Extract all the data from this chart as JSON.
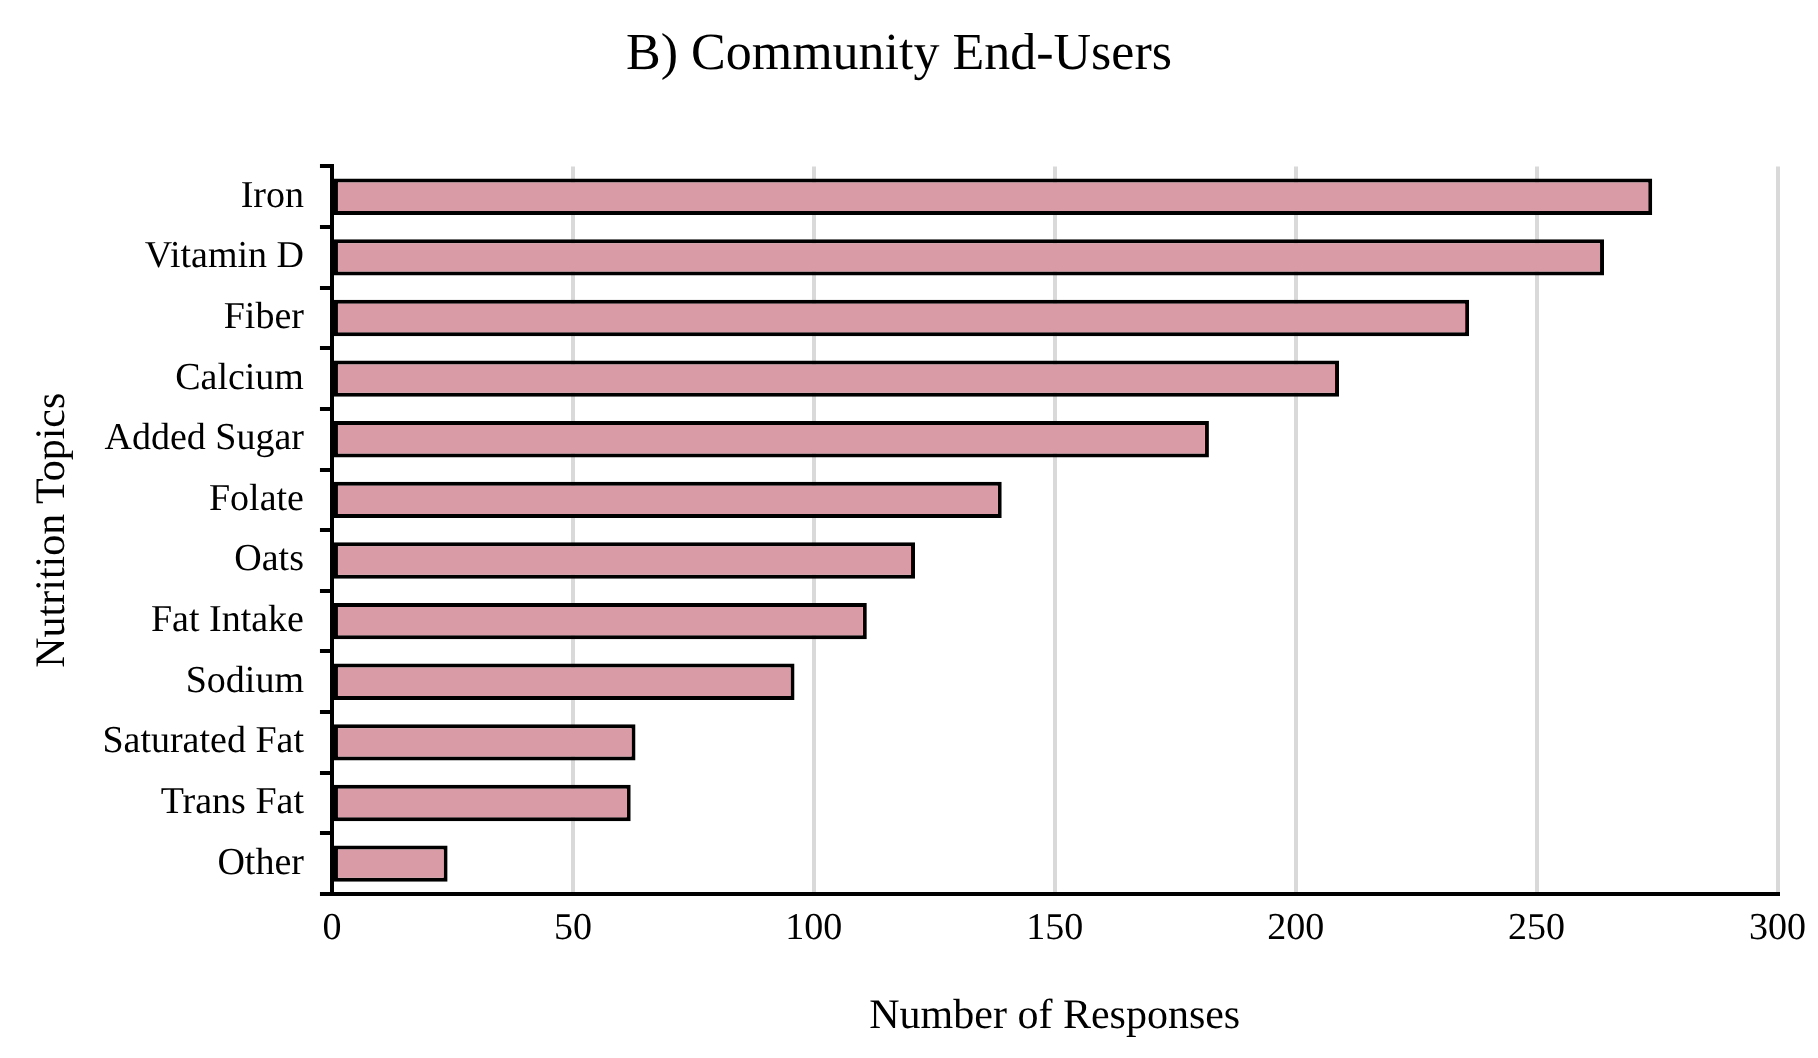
{
  "chart_data": {
    "type": "bar",
    "orientation": "horizontal",
    "title": "B) Community End-Users",
    "xlabel": "Number of Responses",
    "ylabel": "Nutrition Topics",
    "categories": [
      "Iron",
      "Vitamin D",
      "Fiber",
      "Calcium",
      "Added Sugar",
      "Folate",
      "Oats",
      "Fat Intake",
      "Sodium",
      "Saturated Fat",
      "Trans Fat",
      "Other"
    ],
    "values": [
      274,
      264,
      236,
      209,
      182,
      139,
      121,
      111,
      96,
      63,
      62,
      24
    ],
    "color": "#d99ca6",
    "xlim": [
      0,
      300
    ],
    "xticks": [
      0,
      50,
      100,
      150,
      200,
      250,
      300
    ],
    "grid": "x",
    "legend": false
  }
}
